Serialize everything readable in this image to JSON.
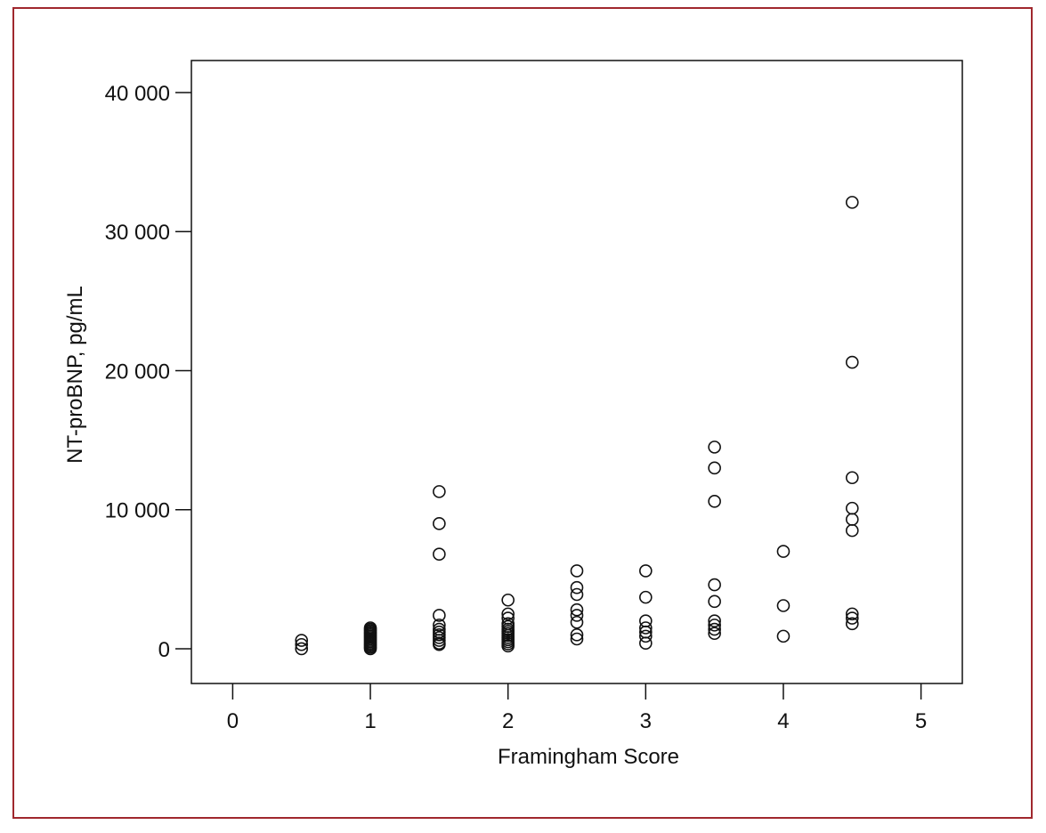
{
  "frame_color": "#a0282e",
  "chart_data": {
    "type": "scatter",
    "title": "",
    "xlabel": "Framingham Score",
    "ylabel": "NT-proBNP, pg/mL",
    "xlim": [
      -0.3,
      5.3
    ],
    "ylim": [
      -2500,
      42300
    ],
    "x_ticks": [
      0,
      1,
      2,
      3,
      4,
      5
    ],
    "x_tick_labels": [
      "0",
      "1",
      "2",
      "3",
      "4",
      "5"
    ],
    "y_ticks": [
      0,
      10000,
      20000,
      30000,
      40000
    ],
    "y_tick_labels": [
      "0",
      "10 000",
      "20 000",
      "30 000",
      "40 000"
    ],
    "grid": false,
    "legend": "none",
    "marker": "open-circle",
    "points": [
      {
        "x": 0.5,
        "y": 0
      },
      {
        "x": 0.5,
        "y": 300
      },
      {
        "x": 0.5,
        "y": 600
      },
      {
        "x": 1,
        "y": 0
      },
      {
        "x": 1,
        "y": 100
      },
      {
        "x": 1,
        "y": 200
      },
      {
        "x": 1,
        "y": 300
      },
      {
        "x": 1,
        "y": 400
      },
      {
        "x": 1,
        "y": 500
      },
      {
        "x": 1,
        "y": 600
      },
      {
        "x": 1,
        "y": 700
      },
      {
        "x": 1,
        "y": 800
      },
      {
        "x": 1,
        "y": 900
      },
      {
        "x": 1,
        "y": 1000
      },
      {
        "x": 1,
        "y": 1100
      },
      {
        "x": 1,
        "y": 1200
      },
      {
        "x": 1,
        "y": 1300
      },
      {
        "x": 1,
        "y": 1400
      },
      {
        "x": 1,
        "y": 1500
      },
      {
        "x": 1.5,
        "y": 300
      },
      {
        "x": 1.5,
        "y": 400
      },
      {
        "x": 1.5,
        "y": 600
      },
      {
        "x": 1.5,
        "y": 800
      },
      {
        "x": 1.5,
        "y": 1000
      },
      {
        "x": 1.5,
        "y": 1200
      },
      {
        "x": 1.5,
        "y": 1400
      },
      {
        "x": 1.5,
        "y": 1700
      },
      {
        "x": 1.5,
        "y": 2400
      },
      {
        "x": 1.5,
        "y": 6800
      },
      {
        "x": 1.5,
        "y": 9000
      },
      {
        "x": 1.5,
        "y": 11300
      },
      {
        "x": 2,
        "y": 200
      },
      {
        "x": 2,
        "y": 350
      },
      {
        "x": 2,
        "y": 500
      },
      {
        "x": 2,
        "y": 650
      },
      {
        "x": 2,
        "y": 800
      },
      {
        "x": 2,
        "y": 950
      },
      {
        "x": 2,
        "y": 1100
      },
      {
        "x": 2,
        "y": 1250
      },
      {
        "x": 2,
        "y": 1400
      },
      {
        "x": 2,
        "y": 1600
      },
      {
        "x": 2,
        "y": 1800
      },
      {
        "x": 2,
        "y": 2200
      },
      {
        "x": 2,
        "y": 2500
      },
      {
        "x": 2,
        "y": 3500
      },
      {
        "x": 2.5,
        "y": 700
      },
      {
        "x": 2.5,
        "y": 1000
      },
      {
        "x": 2.5,
        "y": 1900
      },
      {
        "x": 2.5,
        "y": 2400
      },
      {
        "x": 2.5,
        "y": 2800
      },
      {
        "x": 2.5,
        "y": 3900
      },
      {
        "x": 2.5,
        "y": 4400
      },
      {
        "x": 2.5,
        "y": 5600
      },
      {
        "x": 3,
        "y": 400
      },
      {
        "x": 3,
        "y": 900
      },
      {
        "x": 3,
        "y": 1200
      },
      {
        "x": 3,
        "y": 1500
      },
      {
        "x": 3,
        "y": 2000
      },
      {
        "x": 3,
        "y": 3700
      },
      {
        "x": 3,
        "y": 5600
      },
      {
        "x": 3.5,
        "y": 1100
      },
      {
        "x": 3.5,
        "y": 1400
      },
      {
        "x": 3.5,
        "y": 1700
      },
      {
        "x": 3.5,
        "y": 2000
      },
      {
        "x": 3.5,
        "y": 3400
      },
      {
        "x": 3.5,
        "y": 4600
      },
      {
        "x": 3.5,
        "y": 10600
      },
      {
        "x": 3.5,
        "y": 13000
      },
      {
        "x": 3.5,
        "y": 14500
      },
      {
        "x": 4,
        "y": 900
      },
      {
        "x": 4,
        "y": 3100
      },
      {
        "x": 4,
        "y": 7000
      },
      {
        "x": 4.5,
        "y": 1800
      },
      {
        "x": 4.5,
        "y": 2200
      },
      {
        "x": 4.5,
        "y": 2500
      },
      {
        "x": 4.5,
        "y": 8500
      },
      {
        "x": 4.5,
        "y": 9300
      },
      {
        "x": 4.5,
        "y": 10100
      },
      {
        "x": 4.5,
        "y": 12300
      },
      {
        "x": 4.5,
        "y": 20600
      },
      {
        "x": 4.5,
        "y": 32100
      }
    ]
  }
}
